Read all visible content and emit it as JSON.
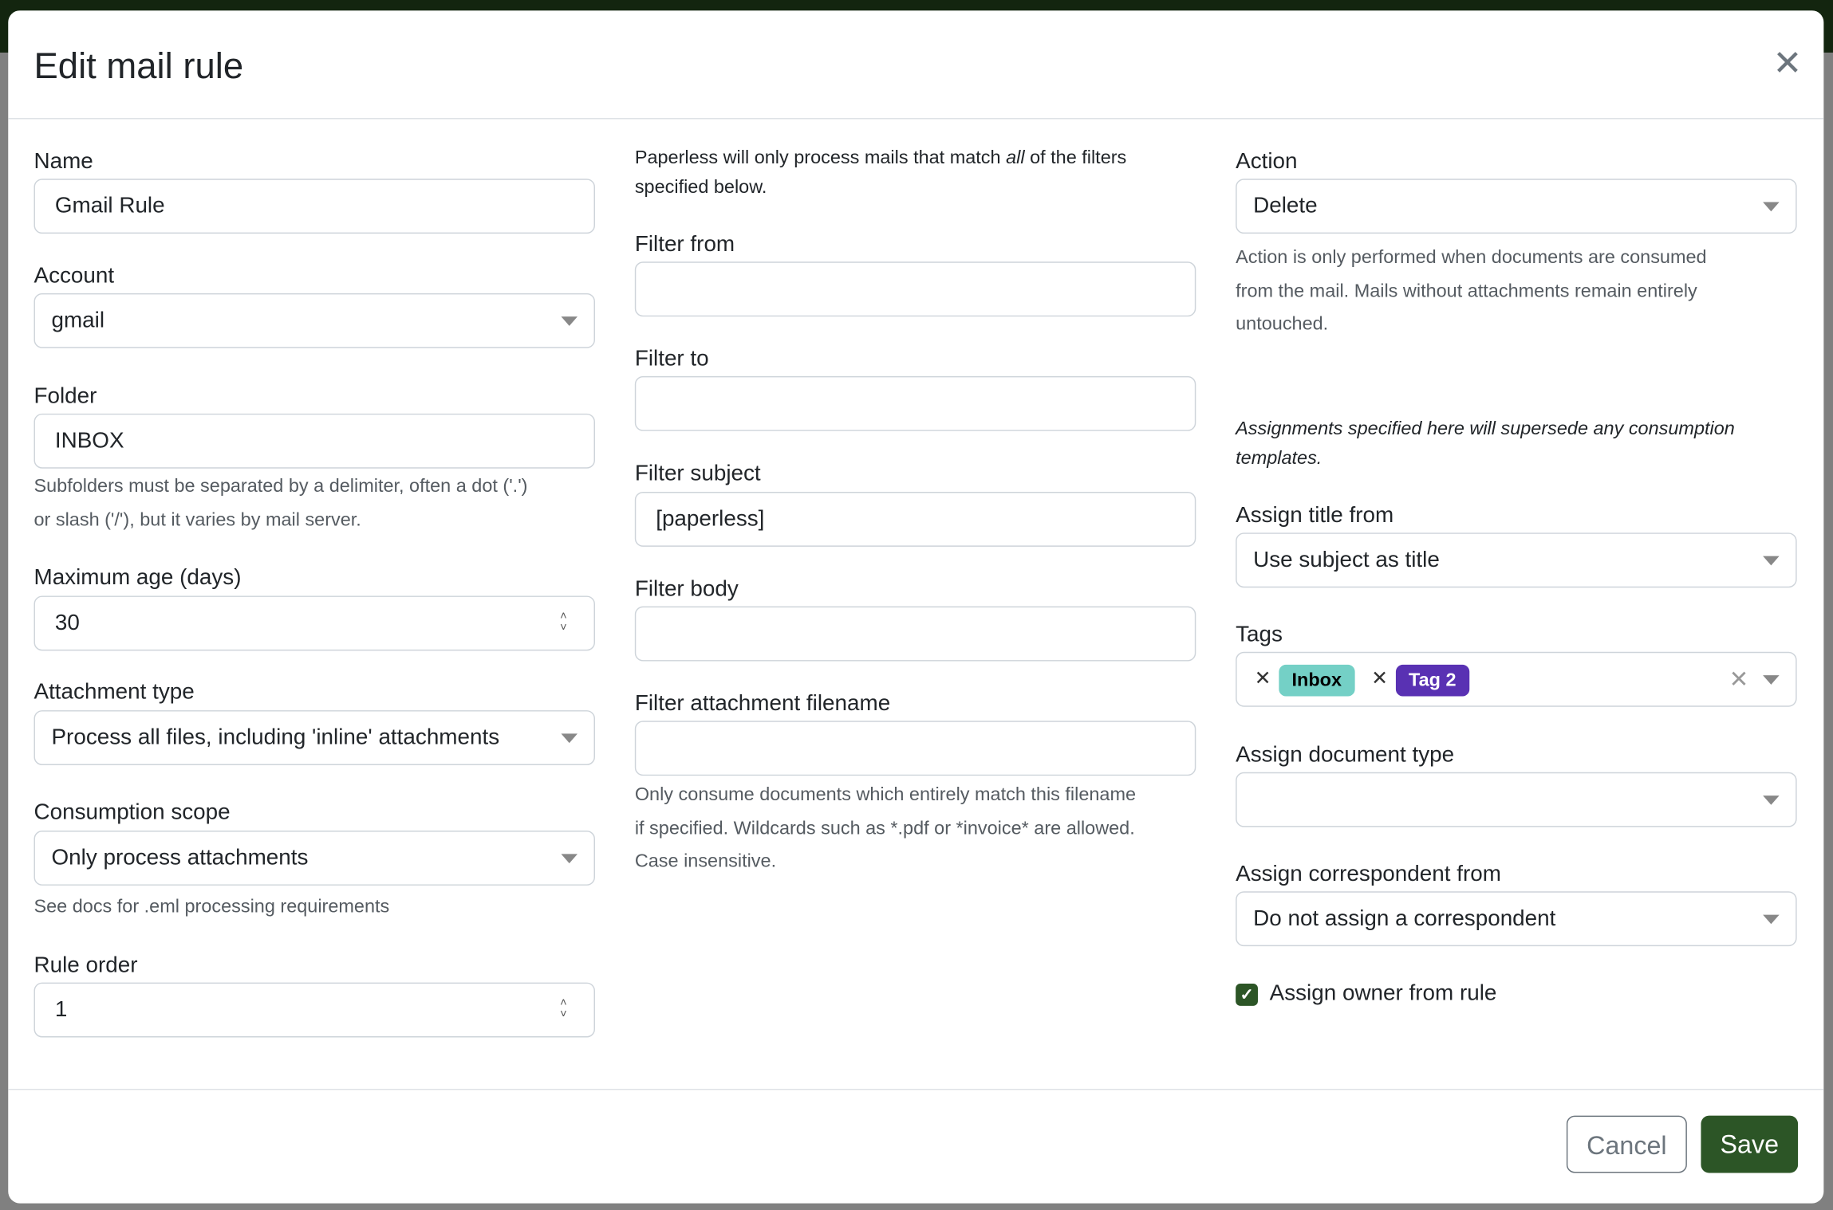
{
  "modal": {
    "title": "Edit mail rule",
    "close_icon": "close-icon"
  },
  "col1": {
    "name": {
      "label": "Name",
      "value": "Gmail Rule"
    },
    "account": {
      "label": "Account",
      "value": "gmail"
    },
    "folder": {
      "label": "Folder",
      "value": "INBOX",
      "help_1": "Subfolders must be separated by a delimiter, often a dot ('.')",
      "help_2": "or slash ('/'), but it varies by mail server."
    },
    "max_age": {
      "label": "Maximum age (days)",
      "value": "30"
    },
    "attachment_type": {
      "label": "Attachment type",
      "value": "Process all files, including 'inline' attachments"
    },
    "consumption_scope": {
      "label": "Consumption scope",
      "value": "Only process attachments",
      "help": "See docs for .eml processing requirements"
    },
    "rule_order": {
      "label": "Rule order",
      "value": "1"
    }
  },
  "col2": {
    "intro_1": "Paperless will only process mails that match ",
    "intro_em": "all",
    "intro_2": " of the filters",
    "intro_3": "specified below.",
    "filter_from": {
      "label": "Filter from",
      "value": ""
    },
    "filter_to": {
      "label": "Filter to",
      "value": ""
    },
    "filter_subject": {
      "label": "Filter subject",
      "value": "[paperless]"
    },
    "filter_body": {
      "label": "Filter body",
      "value": ""
    },
    "filter_attachment": {
      "label": "Filter attachment filename",
      "value": "",
      "help_1": "Only consume documents which entirely match this filename",
      "help_2": "if specified. Wildcards such as *.pdf or *invoice* are allowed.",
      "help_3": "Case insensitive."
    }
  },
  "col3": {
    "action": {
      "label": "Action",
      "value": "Delete",
      "help_1": "Action is only performed when documents are consumed",
      "help_2": "from the mail. Mails without attachments remain entirely",
      "help_3": "untouched."
    },
    "note_1": "Assignments specified here will supersede any consumption",
    "note_2": "templates.",
    "assign_title": {
      "label": "Assign title from",
      "value": "Use subject as title"
    },
    "tags": {
      "label": "Tags",
      "items": [
        {
          "name": "Inbox",
          "bg": "#74d0c6",
          "fg": "#000000"
        },
        {
          "name": "Tag 2",
          "bg": "#5931b3",
          "fg": "#ffffff"
        }
      ]
    },
    "assign_doc_type": {
      "label": "Assign document type",
      "value": ""
    },
    "assign_correspondent": {
      "label": "Assign correspondent from",
      "value": "Do not assign a correspondent"
    },
    "assign_owner": {
      "label": "Assign owner from rule",
      "checked": true
    }
  },
  "footer": {
    "cancel": "Cancel",
    "save": "Save"
  },
  "colors": {
    "primary": "#2c5526",
    "topbar": "#13250f",
    "backdrop": "#808080"
  }
}
